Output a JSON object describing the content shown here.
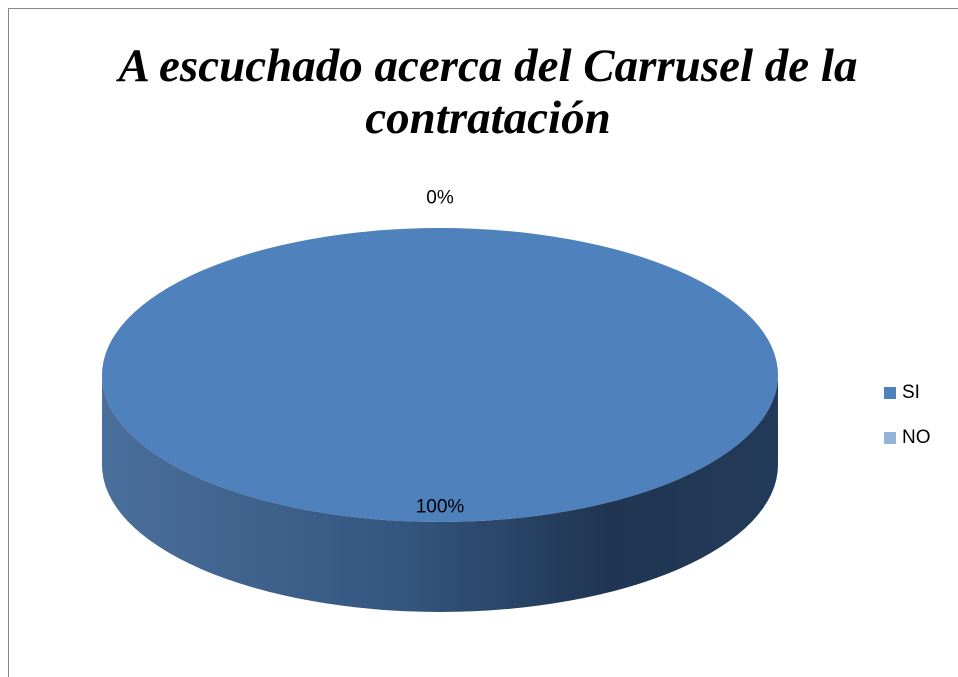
{
  "chart_data": {
    "type": "pie",
    "title": "A escuchado acerca del Carrusel de la contratación",
    "categories": [
      "SI",
      "NO"
    ],
    "values": [
      100,
      0
    ],
    "value_labels": [
      "100%",
      "0%"
    ],
    "colors": [
      "#4f81bd",
      "#95b3d7"
    ],
    "legend": "right"
  }
}
